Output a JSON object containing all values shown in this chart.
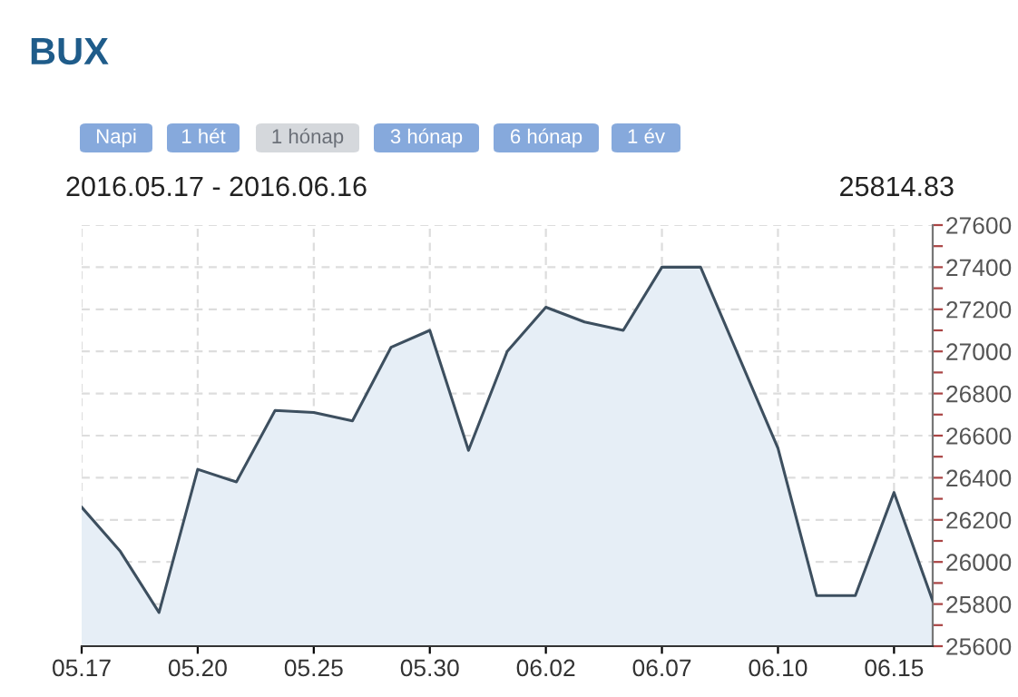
{
  "chart_data": {
    "type": "area",
    "title": "BUX",
    "subtitle": "2016.05.17 - 2016.06.16",
    "annotations": [
      "Napi",
      "1 hét",
      "1 hónap",
      "3 hónap",
      "6 hónap",
      "1 év",
      "25814.83"
    ],
    "categories": [
      "05.17",
      null,
      null,
      "05.20",
      null,
      null,
      "05.25",
      null,
      null,
      "05.30",
      null,
      null,
      "06.02",
      null,
      null,
      "06.07",
      null,
      null,
      "06.10",
      null,
      null,
      "06.15",
      null
    ],
    "series": [
      {
        "color": "#3d4f5f",
        "values": [
          26260,
          26050,
          25760,
          26440,
          26380,
          26720,
          26710,
          26670,
          27020,
          27100,
          26530,
          27000,
          27210,
          27140,
          27100,
          27400,
          27400,
          26970,
          26540,
          25840,
          25840,
          26330,
          25815
        ]
      }
    ],
    "ylim": [
      25600,
      27600
    ],
    "yticks": [
      25600,
      {
        "value": 25700,
        "label": null
      },
      25800,
      {
        "value": 25900,
        "label": null
      },
      26000,
      {
        "value": 26100,
        "label": null
      },
      26200,
      {
        "value": 26300,
        "label": null
      },
      26400,
      {
        "value": 26500,
        "label": null
      },
      26600,
      {
        "value": 26700,
        "label": null
      },
      26800,
      {
        "value": 26900,
        "label": null
      },
      27000,
      {
        "value": 27100,
        "label": null
      },
      27200,
      {
        "value": 27300,
        "label": null
      },
      27400,
      {
        "value": 27500,
        "label": null
      },
      27600
    ],
    "grid": true,
    "legend": false
  }
}
